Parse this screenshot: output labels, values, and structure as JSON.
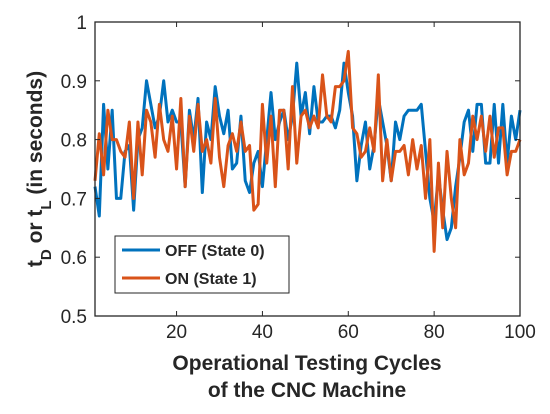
{
  "chart_data": {
    "type": "line",
    "xlabel_line1": "Operational Testing Cycles",
    "xlabel_line2": "of the CNC Machine",
    "ylabel_main_1": "t",
    "ylabel_sub_1": "D",
    "ylabel_main_2": " or t",
    "ylabel_sub_2": "L",
    "ylabel_main_3": " (in seconds)",
    "xlim": [
      1,
      100
    ],
    "ylim": [
      0.5,
      1.0
    ],
    "xticks": [
      20,
      40,
      60,
      80,
      100
    ],
    "yticks": [
      0.5,
      0.6,
      0.7,
      0.8,
      0.9,
      1.0
    ],
    "xtick_labels": [
      "20",
      "40",
      "60",
      "80",
      "100"
    ],
    "ytick_labels": [
      "0.5",
      "0.6",
      "0.7",
      "0.8",
      "0.9",
      "1"
    ],
    "grid": false,
    "legend_position": "lower-left",
    "series": [
      {
        "name": "OFF (State 0)",
        "color": "#0072BD",
        "values": [
          0.72,
          0.67,
          0.86,
          0.75,
          0.85,
          0.7,
          0.7,
          0.78,
          0.79,
          0.68,
          0.8,
          0.82,
          0.9,
          0.86,
          0.82,
          0.84,
          0.9,
          0.83,
          0.85,
          0.83,
          0.83,
          0.72,
          0.85,
          0.8,
          0.87,
          0.71,
          0.83,
          0.8,
          0.89,
          0.84,
          0.81,
          0.85,
          0.75,
          0.76,
          0.84,
          0.73,
          0.71,
          0.76,
          0.78,
          0.72,
          0.8,
          0.88,
          0.8,
          0.83,
          0.85,
          0.8,
          0.84,
          0.93,
          0.84,
          0.88,
          0.81,
          0.89,
          0.83,
          0.83,
          0.84,
          0.84,
          0.82,
          0.85,
          0.93,
          0.88,
          0.84,
          0.73,
          0.79,
          0.83,
          0.75,
          0.79,
          0.87,
          0.83,
          0.79,
          0.73,
          0.83,
          0.8,
          0.84,
          0.85,
          0.85,
          0.85,
          0.86,
          0.78,
          0.7,
          0.66,
          0.74,
          0.68,
          0.63,
          0.65,
          0.72,
          0.77,
          0.83,
          0.85,
          0.78,
          0.86,
          0.86,
          0.76,
          0.76,
          0.86,
          0.76,
          0.86,
          0.76,
          0.84,
          0.8,
          0.85
        ]
      },
      {
        "name": "ON (State 1)",
        "color": "#D95319",
        "values": [
          0.73,
          0.81,
          0.74,
          0.85,
          0.8,
          0.8,
          0.78,
          0.77,
          0.83,
          0.7,
          0.83,
          0.74,
          0.85,
          0.83,
          0.77,
          0.86,
          0.8,
          0.78,
          0.84,
          0.75,
          0.87,
          0.72,
          0.84,
          0.78,
          0.86,
          0.78,
          0.8,
          0.76,
          0.87,
          0.77,
          0.72,
          0.79,
          0.81,
          0.78,
          0.83,
          0.78,
          0.79,
          0.68,
          0.69,
          0.86,
          0.76,
          0.84,
          0.72,
          0.85,
          0.85,
          0.75,
          0.89,
          0.76,
          0.84,
          0.85,
          0.82,
          0.84,
          0.82,
          0.91,
          0.84,
          0.83,
          0.89,
          0.89,
          0.9,
          0.95,
          0.82,
          0.81,
          0.77,
          0.78,
          0.82,
          0.78,
          0.91,
          0.73,
          0.8,
          0.73,
          0.78,
          0.78,
          0.79,
          0.74,
          0.8,
          0.75,
          0.79,
          0.7,
          0.8,
          0.61,
          0.76,
          0.65,
          0.78,
          0.7,
          0.65,
          0.8,
          0.74,
          0.76,
          0.84,
          0.8,
          0.84,
          0.78,
          0.84,
          0.77,
          0.82,
          0.82,
          0.74,
          0.78,
          0.78,
          0.8
        ]
      }
    ]
  }
}
